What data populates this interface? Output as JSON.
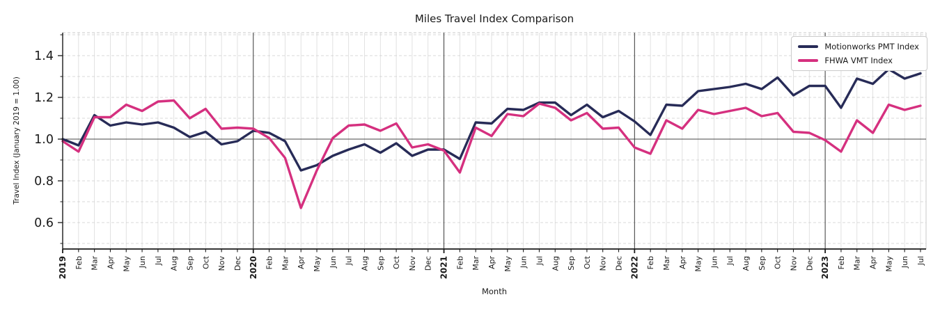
{
  "title": "Miles Travel Index Comparison",
  "x_axis_label": "Month",
  "y_axis_label": "Travel Index (January 2019 = 1.00)",
  "legend": {
    "position": "upper right",
    "items": [
      {
        "label": "Motionworks PMT Index",
        "color": "#272b57"
      },
      {
        "label": "FHWA VMT Index",
        "color": "#d5307f"
      }
    ]
  },
  "colors": {
    "pmt_line": "#272b57",
    "vmt_line": "#d5307f",
    "grid_minor": "#cccccc",
    "grid_month": "#dadada",
    "reference_line": "#444444",
    "year_line": "#3a3a3a",
    "axis_spine": "#1a1a1a",
    "text": "#1a1a1a"
  },
  "chart_data": {
    "type": "line",
    "title": "Miles Travel Index Comparison",
    "xlabel": "Month",
    "ylabel": "Travel Index (January 2019 = 1.00)",
    "grid": true,
    "legend_position": "upper right",
    "ylim": [
      0.48,
      1.517
    ],
    "y_ticks_major": [
      0.6,
      0.8,
      1.0,
      1.2,
      1.4
    ],
    "y_ticks_minor": [
      0.5,
      0.7,
      0.9,
      1.1,
      1.3,
      1.5
    ],
    "y_gridlines_step": 0.1,
    "reference_line_y": 1.0,
    "year_start_indices": [
      0,
      12,
      24,
      36,
      48
    ],
    "year_divider_indices": [
      12,
      24,
      36,
      48
    ],
    "x_tick_labels": [
      "2019",
      "Feb",
      "Mar",
      "Apr",
      "May",
      "Jun",
      "Jul",
      "Aug",
      "Sep",
      "Oct",
      "Nov",
      "Dec",
      "2020",
      "Feb",
      "Mar",
      "Apr",
      "May",
      "Jun",
      "Jul",
      "Aug",
      "Sep",
      "Oct",
      "Nov",
      "Dec",
      "2021",
      "Feb",
      "Mar",
      "Apr",
      "May",
      "Jun",
      "Jul",
      "Aug",
      "Sep",
      "Oct",
      "Nov",
      "Dec",
      "2022",
      "Feb",
      "Mar",
      "Apr",
      "May",
      "Jun",
      "Jul",
      "Aug",
      "Sep",
      "Oct",
      "Nov",
      "Dec",
      "2023",
      "Feb",
      "Mar",
      "Apr",
      "May",
      "Jun",
      "Jul"
    ],
    "series": [
      {
        "name": "Motionworks PMT Index",
        "color": "#272b57",
        "values": [
          1.0,
          0.97,
          1.115,
          1.065,
          1.08,
          1.07,
          1.08,
          1.055,
          1.01,
          1.035,
          0.975,
          0.99,
          1.04,
          1.03,
          0.99,
          0.85,
          0.875,
          0.92,
          0.95,
          0.975,
          0.935,
          0.98,
          0.92,
          0.95,
          0.95,
          0.905,
          1.08,
          1.075,
          1.145,
          1.14,
          1.175,
          1.175,
          1.115,
          1.165,
          1.105,
          1.135,
          1.085,
          1.02,
          1.165,
          1.16,
          1.23,
          1.24,
          1.25,
          1.265,
          1.24,
          1.295,
          1.21,
          1.255,
          1.255,
          1.15,
          1.29,
          1.265,
          1.335,
          1.29,
          1.315
        ]
      },
      {
        "name": "FHWA VMT Index",
        "color": "#d5307f",
        "values": [
          0.99,
          0.94,
          1.105,
          1.105,
          1.165,
          1.135,
          1.18,
          1.185,
          1.1,
          1.145,
          1.05,
          1.055,
          1.05,
          1.005,
          0.91,
          0.67,
          0.85,
          1.005,
          1.065,
          1.07,
          1.04,
          1.075,
          0.96,
          0.975,
          0.945,
          0.84,
          1.055,
          1.015,
          1.12,
          1.11,
          1.17,
          1.15,
          1.09,
          1.125,
          1.05,
          1.055,
          0.96,
          0.93,
          1.09,
          1.05,
          1.14,
          1.12,
          1.135,
          1.15,
          1.11,
          1.125,
          1.035,
          1.03,
          0.995,
          0.94,
          1.09,
          1.03,
          1.165,
          1.14,
          1.16
        ]
      }
    ]
  }
}
